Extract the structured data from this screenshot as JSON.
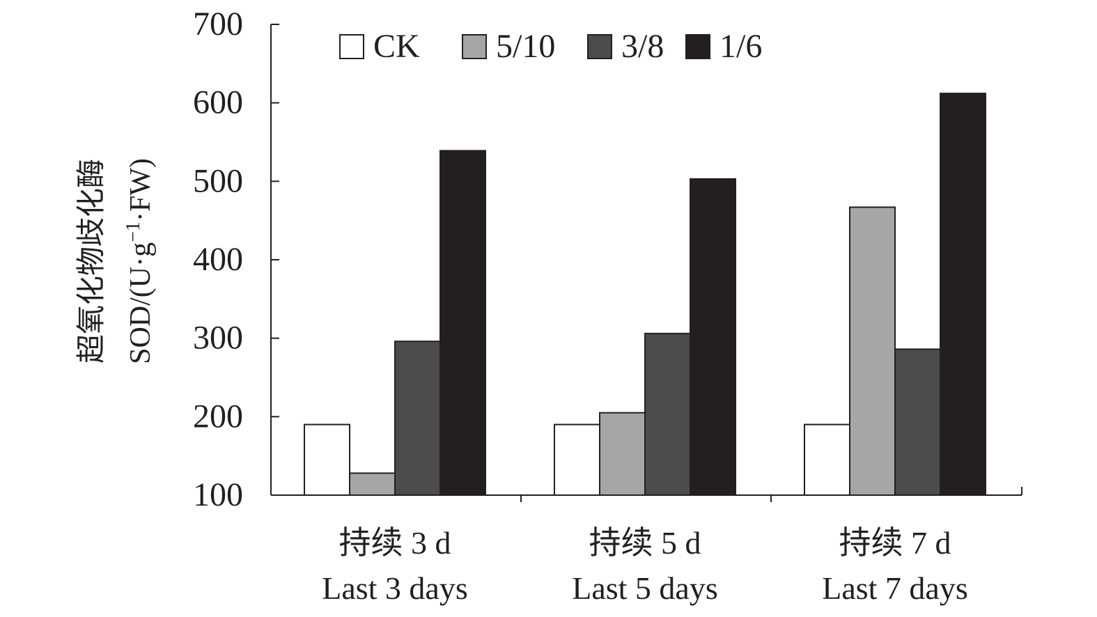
{
  "chart_data": {
    "type": "bar",
    "ylabel_cn": "超氧化物歧化酶",
    "ylabel_en_prefix": "SOD/(U·g",
    "ylabel_en_sup": "−1",
    "ylabel_en_suffix": "·FW)",
    "ylim": [
      100,
      700
    ],
    "yticks": [
      "100",
      "200",
      "300",
      "400",
      "500",
      "600",
      "700"
    ],
    "categories": [
      {
        "cn": "持续 3 d",
        "en": "Last 3 days"
      },
      {
        "cn": "持续 5 d",
        "en": "Last 5 days"
      },
      {
        "cn": "持续 7 d",
        "en": "Last 7 days"
      }
    ],
    "series": [
      {
        "name": "CK",
        "color": "#ffffff",
        "values": [
          190,
          190,
          190
        ]
      },
      {
        "name": "5/10",
        "color": "#a7a6a6",
        "values": [
          128,
          205,
          467
        ]
      },
      {
        "name": "3/8",
        "color": "#4d4c4d",
        "values": [
          296,
          306,
          286
        ]
      },
      {
        "name": "1/6",
        "color": "#231f20",
        "values": [
          539,
          503,
          612
        ]
      }
    ],
    "grid": false,
    "legend_position": "top"
  }
}
